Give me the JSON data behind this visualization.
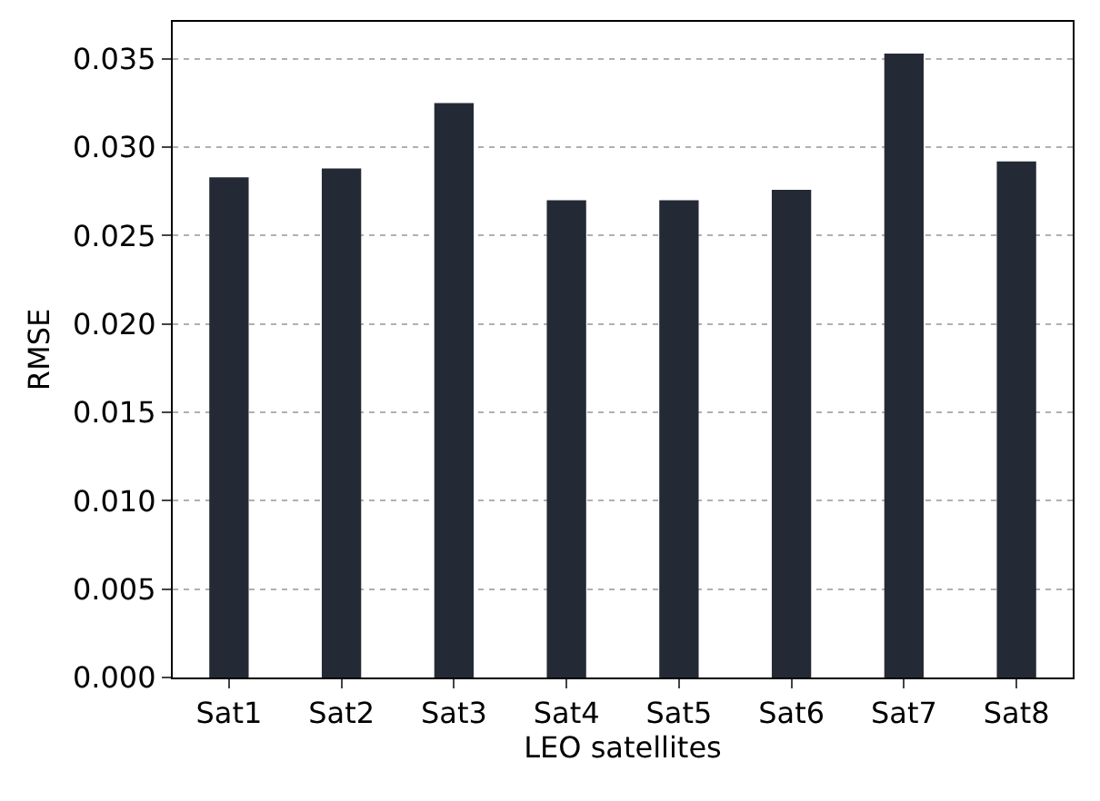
{
  "chart_data": {
    "type": "bar",
    "xlabel": "LEO satellites",
    "ylabel": "RMSE",
    "categories": [
      "Sat1",
      "Sat2",
      "Sat3",
      "Sat4",
      "Sat5",
      "Sat6",
      "Sat7",
      "Sat8"
    ],
    "values": [
      0.0283,
      0.0288,
      0.0325,
      0.027,
      0.027,
      0.0276,
      0.0353,
      0.0292
    ],
    "color": "#242a35",
    "ylim": [
      0,
      0.0371
    ],
    "yticks": [
      {
        "value": 0,
        "label": "0.000"
      },
      {
        "value": 0.005,
        "label": "0.005"
      },
      {
        "value": 0.01,
        "label": "0.010"
      },
      {
        "value": 0.015,
        "label": "0.015"
      },
      {
        "value": 0.02,
        "label": "0.020"
      },
      {
        "value": 0.025,
        "label": "0.025"
      },
      {
        "value": 0.03,
        "label": "0.030"
      },
      {
        "value": 0.035,
        "label": "0.035"
      }
    ],
    "grid": "y"
  }
}
